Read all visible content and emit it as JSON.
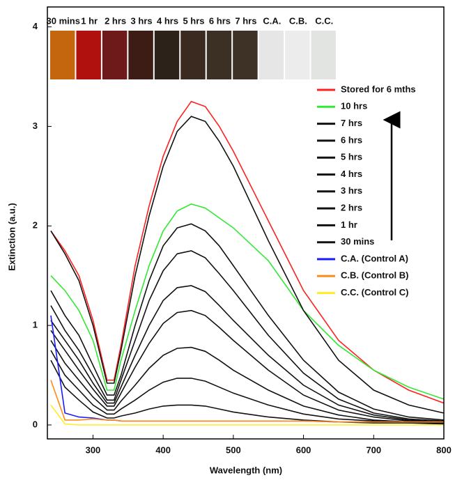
{
  "chart_data": {
    "type": "line",
    "x_label": "Wavelength (nm)",
    "y_label": "Extinction (a.u.)",
    "x": [
      240,
      260,
      280,
      300,
      320,
      330,
      340,
      360,
      380,
      400,
      420,
      440,
      460,
      480,
      500,
      550,
      600,
      650,
      700,
      750,
      800
    ],
    "xlim": [
      235,
      800
    ],
    "ylim": [
      -0.14,
      4.2
    ],
    "xticks": [
      300,
      400,
      500,
      600,
      700,
      800
    ],
    "yticks": [
      0,
      1,
      2,
      3,
      4
    ],
    "legend": "upper right",
    "vial_labels": [
      "30 mins",
      "1 hr",
      "2 hrs",
      "3 hrs",
      "4 hrs",
      "5 hrs",
      "6 hrs",
      "7 hrs",
      "C.A.",
      "C.B.",
      "C.C."
    ],
    "vial_colors": [
      "#c4660e",
      "#b0100e",
      "#6e1a1a",
      "#3c1c14",
      "#2c221a",
      "#3a2a20",
      "#3c3024",
      "#3e3226",
      "#e6e6e6",
      "#ececec",
      "#e2e4e2"
    ],
    "series": [
      {
        "name": "Stored for 6 mths",
        "color": "#ff2020",
        "values": [
          1.95,
          1.75,
          1.5,
          1.05,
          0.45,
          0.45,
          0.8,
          1.6,
          2.2,
          2.7,
          3.05,
          3.25,
          3.2,
          3.0,
          2.75,
          2.05,
          1.35,
          0.85,
          0.55,
          0.35,
          0.22
        ]
      },
      {
        "name": "10 hrs",
        "color": "#33e833",
        "values": [
          1.5,
          1.35,
          1.15,
          0.85,
          0.35,
          0.35,
          0.65,
          1.15,
          1.6,
          1.95,
          2.15,
          2.22,
          2.18,
          2.08,
          1.98,
          1.65,
          1.15,
          0.8,
          0.55,
          0.38,
          0.26
        ]
      },
      {
        "name": "7 hrs",
        "color": "#111111",
        "values": [
          1.95,
          1.72,
          1.45,
          1.0,
          0.42,
          0.42,
          0.75,
          1.5,
          2.1,
          2.6,
          2.95,
          3.1,
          3.05,
          2.85,
          2.6,
          1.85,
          1.15,
          0.65,
          0.35,
          0.2,
          0.12
        ]
      },
      {
        "name": "6 hrs",
        "color": "#111111",
        "values": [
          1.35,
          1.1,
          0.9,
          0.6,
          0.3,
          0.3,
          0.5,
          1.0,
          1.45,
          1.8,
          1.98,
          2.02,
          1.95,
          1.8,
          1.6,
          1.1,
          0.65,
          0.33,
          0.16,
          0.08,
          0.05
        ]
      },
      {
        "name": "5 hrs",
        "color": "#111111",
        "values": [
          1.2,
          0.95,
          0.75,
          0.5,
          0.25,
          0.25,
          0.45,
          0.85,
          1.25,
          1.55,
          1.72,
          1.75,
          1.68,
          1.52,
          1.35,
          0.9,
          0.52,
          0.26,
          0.12,
          0.06,
          0.04
        ]
      },
      {
        "name": "4 hrs",
        "color": "#111111",
        "values": [
          1.05,
          0.85,
          0.65,
          0.42,
          0.22,
          0.22,
          0.38,
          0.7,
          1.0,
          1.25,
          1.38,
          1.4,
          1.34,
          1.2,
          1.05,
          0.7,
          0.4,
          0.2,
          0.1,
          0.05,
          0.03
        ]
      },
      {
        "name": "3 hrs",
        "color": "#111111",
        "values": [
          0.95,
          0.75,
          0.55,
          0.36,
          0.19,
          0.19,
          0.32,
          0.58,
          0.82,
          1.02,
          1.13,
          1.15,
          1.1,
          0.98,
          0.85,
          0.55,
          0.3,
          0.15,
          0.08,
          0.04,
          0.03
        ]
      },
      {
        "name": "2 hrs",
        "color": "#111111",
        "values": [
          0.85,
          0.62,
          0.45,
          0.28,
          0.15,
          0.15,
          0.24,
          0.4,
          0.57,
          0.7,
          0.77,
          0.78,
          0.74,
          0.65,
          0.55,
          0.35,
          0.19,
          0.1,
          0.05,
          0.03,
          0.02
        ]
      },
      {
        "name": "1 hr",
        "color": "#111111",
        "values": [
          0.75,
          0.5,
          0.35,
          0.2,
          0.11,
          0.11,
          0.16,
          0.25,
          0.35,
          0.43,
          0.47,
          0.47,
          0.44,
          0.38,
          0.32,
          0.2,
          0.11,
          0.06,
          0.04,
          0.02,
          0.02
        ]
      },
      {
        "name": "30 mins",
        "color": "#111111",
        "values": [
          0.65,
          0.38,
          0.25,
          0.13,
          0.07,
          0.07,
          0.09,
          0.12,
          0.16,
          0.19,
          0.2,
          0.2,
          0.19,
          0.16,
          0.13,
          0.08,
          0.05,
          0.03,
          0.02,
          0.02,
          0.01
        ]
      },
      {
        "name": "C.A. (Control A)",
        "color": "#1a1aff",
        "values": [
          1.1,
          0.12,
          0.08,
          0.07,
          0.05,
          0.05,
          0.04,
          0.04,
          0.04,
          0.04,
          0.04,
          0.04,
          0.04,
          0.04,
          0.04,
          0.04,
          0.04,
          0.03,
          0.03,
          0.03,
          0.03
        ]
      },
      {
        "name": "C.B. (Control B)",
        "color": "#ff8c1a",
        "values": [
          0.45,
          0.05,
          0.05,
          0.06,
          0.05,
          0.05,
          0.04,
          0.04,
          0.04,
          0.04,
          0.04,
          0.04,
          0.04,
          0.04,
          0.04,
          0.04,
          0.04,
          0.03,
          0.03,
          0.03,
          0.03
        ]
      },
      {
        "name": "C.C. (Control C)",
        "color": "#ffee22",
        "values": [
          0.2,
          0.01,
          0,
          0,
          0,
          0,
          0,
          0,
          0,
          0,
          0,
          0,
          0,
          0,
          0,
          0,
          0,
          0,
          0,
          0,
          0
        ]
      }
    ]
  }
}
